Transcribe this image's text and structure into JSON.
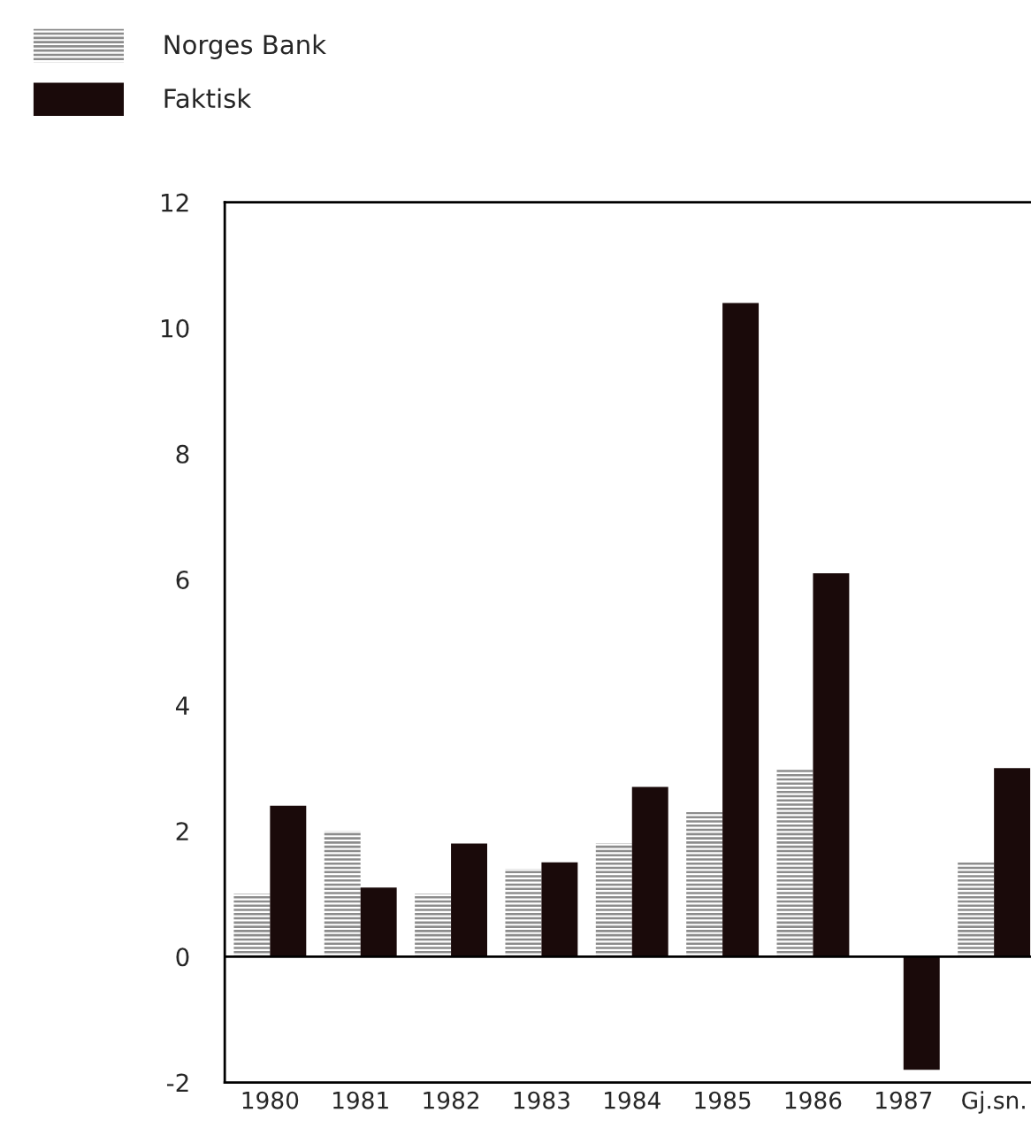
{
  "chart_data": {
    "type": "bar",
    "categories": [
      "1980",
      "1981",
      "1982",
      "1983",
      "1984",
      "1985",
      "1986",
      "1987",
      "Gj.sn."
    ],
    "series": [
      {
        "name": "Norges Bank",
        "color": "#8c8c8c",
        "values": [
          1.0,
          2.0,
          1.0,
          1.4,
          1.8,
          2.3,
          3.0,
          null,
          1.5
        ]
      },
      {
        "name": "Faktisk",
        "color": "#1a0a0a",
        "values": [
          2.4,
          1.1,
          1.8,
          1.5,
          2.7,
          10.4,
          6.1,
          -1.8,
          3.0
        ]
      }
    ],
    "ylim": [
      -2,
      12
    ],
    "yticks": [
      -2,
      0,
      2,
      4,
      6,
      8,
      10,
      12
    ],
    "ref_lines": [
      {
        "axis": "y",
        "value": 0,
        "color": "#000000"
      }
    ],
    "grid": false,
    "legend": "top left"
  }
}
